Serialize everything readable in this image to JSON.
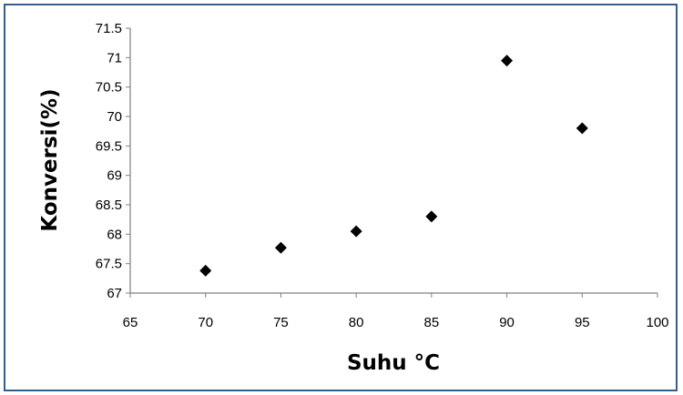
{
  "chart_data": {
    "type": "scatter",
    "title": "",
    "xlabel": "Suhu °C",
    "ylabel": "Konversi(%)",
    "xlim": [
      65,
      100
    ],
    "ylim": [
      67,
      71.5
    ],
    "x_ticks": [
      65,
      70,
      75,
      80,
      85,
      90,
      95,
      100
    ],
    "y_ticks": [
      67,
      67.5,
      68,
      68.5,
      69,
      69.5,
      70,
      70.5,
      71,
      71.5
    ],
    "grid": false,
    "legend": "none",
    "marker": "diamond",
    "marker_color": "#000000",
    "series": [
      {
        "x": [
          70,
          75,
          80,
          85,
          90,
          95
        ],
        "y": [
          67.38,
          67.77,
          68.05,
          68.3,
          70.95,
          69.8
        ]
      }
    ]
  }
}
